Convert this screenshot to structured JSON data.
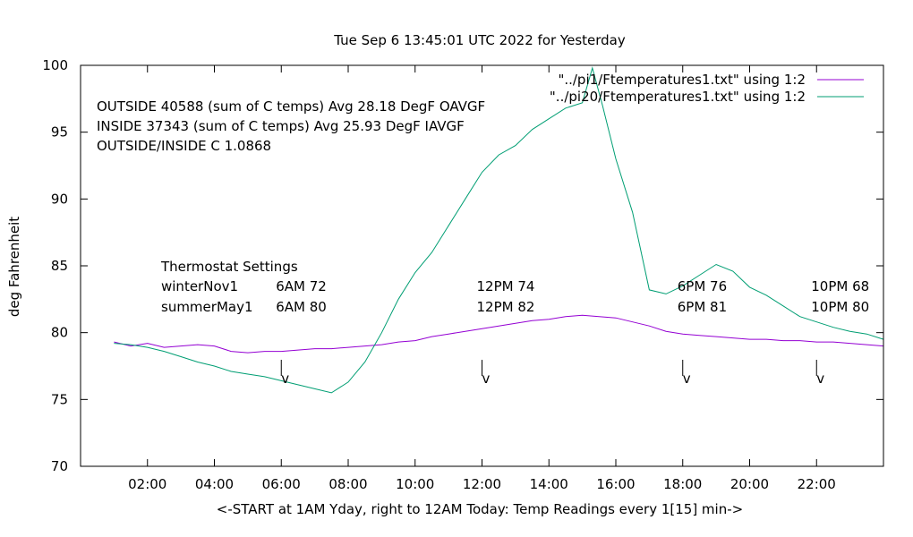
{
  "chart_data": {
    "type": "line",
    "title": "Tue Sep  6 13:45:01 UTC 2022 for Yesterday",
    "xlabel": "<-START at 1AM Yday, right to 12AM Today:  Temp Readings every 1[15] min->",
    "ylabel": "deg Fahrenheit",
    "xlim": [
      0,
      24
    ],
    "ylim": [
      70,
      100
    ],
    "x_ticks": [
      2,
      4,
      6,
      8,
      10,
      12,
      14,
      16,
      18,
      20,
      22
    ],
    "x_tick_labels": [
      "02:00",
      "04:00",
      "06:00",
      "08:00",
      "10:00",
      "12:00",
      "14:00",
      "16:00",
      "18:00",
      "20:00",
      "22:00"
    ],
    "y_ticks": [
      70,
      75,
      80,
      85,
      90,
      95,
      100
    ],
    "y_tick_labels": [
      "70",
      "75",
      "80",
      "85",
      "90",
      "95",
      "100"
    ],
    "legend_position": "top-right",
    "series": [
      {
        "name": "\"../pi1/Ftemperatures1.txt\" using 1:2",
        "color": "#9400d3",
        "x": [
          1.0,
          1.5,
          2.0,
          2.5,
          3.0,
          3.5,
          4.0,
          4.5,
          5.0,
          5.5,
          6.0,
          6.5,
          7.0,
          7.5,
          8.0,
          8.5,
          9.0,
          9.5,
          10.0,
          10.5,
          11.0,
          11.5,
          12.0,
          12.5,
          13.0,
          13.5,
          14.0,
          14.5,
          15.0,
          15.5,
          16.0,
          16.5,
          17.0,
          17.5,
          18.0,
          18.5,
          19.0,
          19.5,
          20.0,
          20.5,
          21.0,
          21.5,
          22.0,
          22.5,
          23.0,
          23.5,
          24.0
        ],
        "y": [
          79.3,
          79.0,
          79.2,
          78.9,
          79.0,
          79.1,
          79.0,
          78.6,
          78.5,
          78.6,
          78.6,
          78.7,
          78.8,
          78.8,
          78.9,
          79.0,
          79.1,
          79.3,
          79.4,
          79.7,
          79.9,
          80.1,
          80.3,
          80.5,
          80.7,
          80.9,
          81.0,
          81.2,
          81.3,
          81.2,
          81.1,
          80.8,
          80.5,
          80.1,
          79.9,
          79.8,
          79.7,
          79.6,
          79.5,
          79.5,
          79.4,
          79.4,
          79.3,
          79.3,
          79.2,
          79.1,
          79.0
        ]
      },
      {
        "name": "\"../pi20/Ftemperatures1.txt\" using 1:2",
        "color": "#009e73",
        "x": [
          1.0,
          1.5,
          2.0,
          2.5,
          3.0,
          3.5,
          4.0,
          4.5,
          5.0,
          5.5,
          6.0,
          6.5,
          7.0,
          7.5,
          8.0,
          8.5,
          9.0,
          9.5,
          10.0,
          10.5,
          11.0,
          11.5,
          12.0,
          12.5,
          13.0,
          13.5,
          14.0,
          14.5,
          15.0,
          15.3,
          15.6,
          16.0,
          16.5,
          17.0,
          17.5,
          18.0,
          18.5,
          19.0,
          19.5,
          20.0,
          20.5,
          21.0,
          21.5,
          22.0,
          22.5,
          23.0,
          23.5,
          24.0
        ],
        "y": [
          79.2,
          79.1,
          78.9,
          78.6,
          78.2,
          77.8,
          77.5,
          77.1,
          76.9,
          76.7,
          76.4,
          76.1,
          75.8,
          75.5,
          76.3,
          77.8,
          80.0,
          82.5,
          84.5,
          86.0,
          88.0,
          90.0,
          92.0,
          93.3,
          94.0,
          95.2,
          96.0,
          96.8,
          97.2,
          99.8,
          97.0,
          93.0,
          89.0,
          83.2,
          82.9,
          83.5,
          84.3,
          85.1,
          84.6,
          83.4,
          82.8,
          82.0,
          81.2,
          80.8,
          80.4,
          80.1,
          79.9,
          79.5
        ]
      }
    ],
    "annotations": {
      "stats": [
        "OUTSIDE 40588 (sum of C temps) Avg 28.18 DegF OAVGF",
        "INSIDE 37343 (sum of C temps) Avg 25.93 DegF IAVGF",
        "OUTSIDE/INSIDE C 1.0868"
      ],
      "thermostat_title": "Thermostat Settings",
      "winter_label": "winterNov1",
      "summer_label": "summerMay1",
      "settings": [
        {
          "time": 6,
          "winter": "6AM 72",
          "summer": "6AM 80"
        },
        {
          "time": 12,
          "winter": "12PM 74",
          "summer": "12PM 82"
        },
        {
          "time": 18,
          "winter": "6PM 76",
          "summer": "6PM 81"
        },
        {
          "time": 22,
          "winter": "10PM 68",
          "summer": "10PM 80"
        }
      ],
      "arrow_glyph": "v"
    }
  }
}
